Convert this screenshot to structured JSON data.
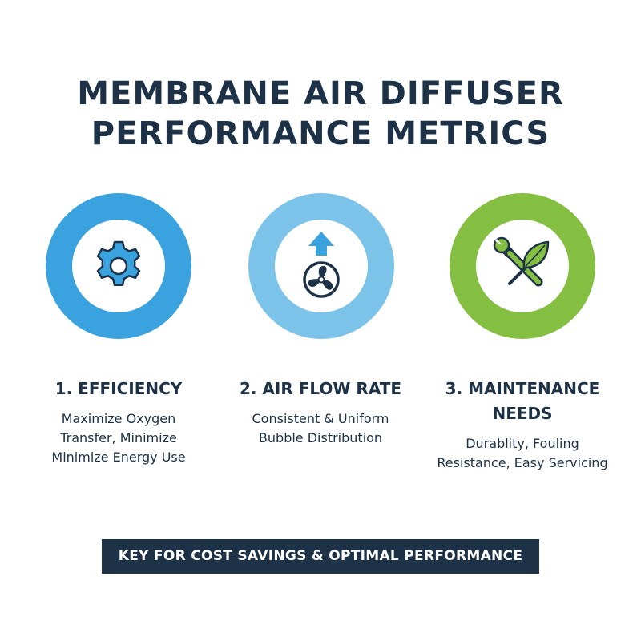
{
  "title": {
    "line1": "MEMBRANE AIR DIFFUSER",
    "line2": "PERFORMANCE METRICS"
  },
  "metrics": [
    {
      "heading_lines": [
        "1. EFFICIENCY"
      ],
      "description_lines": [
        "Maximize Oxygen",
        "Transfer, Minimize",
        "Minimize Energy Use"
      ],
      "icon": "gear-icon",
      "color": "#3aa3df"
    },
    {
      "heading_lines": [
        "2. AIR FLOW RATE"
      ],
      "description_lines": [
        "Consistent & Uniform",
        "Bubble Distribution"
      ],
      "icon": "fan-with-up-arrow-icon",
      "color": "#7cc3e9"
    },
    {
      "heading_lines": [
        "3. MAINTENANCE",
        "NEEDS"
      ],
      "description_lines": [
        "Durablity, Fouling",
        "Resistance, Easy Servicing"
      ],
      "icon": "wrench-leaf-icon",
      "color": "#84bf41"
    }
  ],
  "banner": {
    "text": "KEY FOR COST SAVINGS & OPTIMAL PERFORMANCE"
  },
  "colors": {
    "navy": "#1d3147"
  }
}
